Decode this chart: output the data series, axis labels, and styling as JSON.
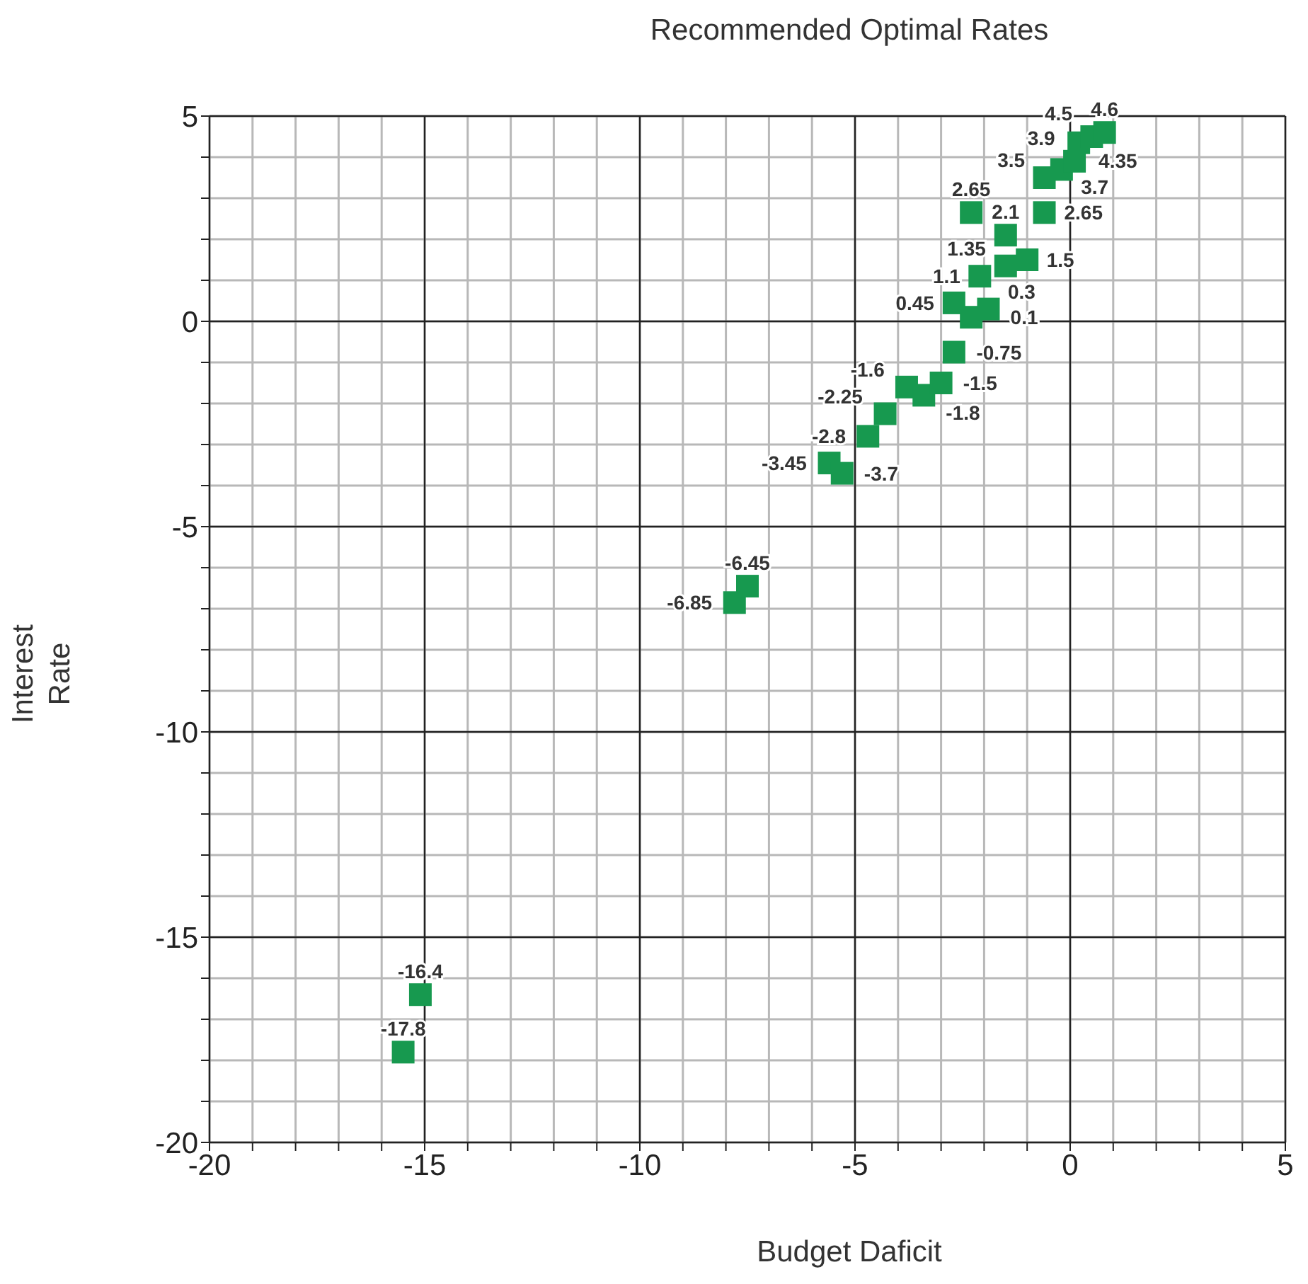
{
  "chart_data": {
    "type": "scatter",
    "title": "Recommended Optimal Rates",
    "xlabel": "Budget Daficit",
    "ylabel": "Interest\nRate",
    "x": [
      -15.5,
      -15.1,
      -7.8,
      -7.5,
      -5.6,
      -5.3,
      -4.7,
      -4.3,
      -3.8,
      -3.4,
      -3.0,
      -2.7,
      -2.3,
      -1.9,
      -2.7,
      -2.1,
      -1.5,
      -1.0,
      -2.3,
      -1.5,
      -0.6,
      -0.6,
      -0.2,
      0.1,
      0.2,
      0.5,
      0.8
    ],
    "series": [
      {
        "color": "#17994f",
        "values": [
          -17.8,
          -16.4,
          -6.85,
          -6.45,
          -3.45,
          -3.7,
          -2.8,
          -2.25,
          -1.6,
          -1.8,
          -1.5,
          -0.75,
          0.1,
          0.3,
          0.45,
          1.1,
          1.35,
          1.5,
          2.65,
          2.1,
          2.65,
          3.5,
          3.7,
          3.9,
          4.35,
          4.5,
          4.6
        ]
      }
    ],
    "data_labels": true,
    "marker": "square",
    "grid": true,
    "legend": false,
    "xlim": [
      -20,
      5
    ],
    "ylim": [
      -20,
      5
    ],
    "xticks": [
      -20,
      {
        "value": -19,
        "label": null
      },
      {
        "value": -18,
        "label": null
      },
      {
        "value": -17,
        "label": null
      },
      {
        "value": -16,
        "label": null
      },
      -15,
      {
        "value": -14,
        "label": null
      },
      {
        "value": -13,
        "label": null
      },
      {
        "value": -12,
        "label": null
      },
      {
        "value": -11,
        "label": null
      },
      -10,
      {
        "value": -9,
        "label": null
      },
      {
        "value": -8,
        "label": null
      },
      {
        "value": -7,
        "label": null
      },
      {
        "value": -6,
        "label": null
      },
      -5,
      {
        "value": -4,
        "label": null
      },
      {
        "value": -3,
        "label": null
      },
      {
        "value": -2,
        "label": null
      },
      {
        "value": -1,
        "label": null
      },
      0,
      {
        "value": 1,
        "label": null
      },
      {
        "value": 2,
        "label": null
      },
      {
        "value": 3,
        "label": null
      },
      {
        "value": 4,
        "label": null
      },
      5
    ],
    "yticks": [
      -20,
      {
        "value": -19,
        "label": null
      },
      {
        "value": -18,
        "label": null
      },
      {
        "value": -17,
        "label": null
      },
      {
        "value": -16,
        "label": null
      },
      -15,
      {
        "value": -14,
        "label": null
      },
      {
        "value": -13,
        "label": null
      },
      {
        "value": -12,
        "label": null
      },
      {
        "value": -11,
        "label": null
      },
      -10,
      {
        "value": -9,
        "label": null
      },
      {
        "value": -8,
        "label": null
      },
      {
        "value": -7,
        "label": null
      },
      {
        "value": -6,
        "label": null
      },
      -5,
      {
        "value": -4,
        "label": null
      },
      {
        "value": -3,
        "label": null
      },
      {
        "value": -2,
        "label": null
      },
      {
        "value": -1,
        "label": null
      },
      0,
      {
        "value": 1,
        "label": null
      },
      {
        "value": 2,
        "label": null
      },
      {
        "value": 3,
        "label": null
      },
      {
        "value": 4,
        "label": null
      },
      5
    ]
  }
}
